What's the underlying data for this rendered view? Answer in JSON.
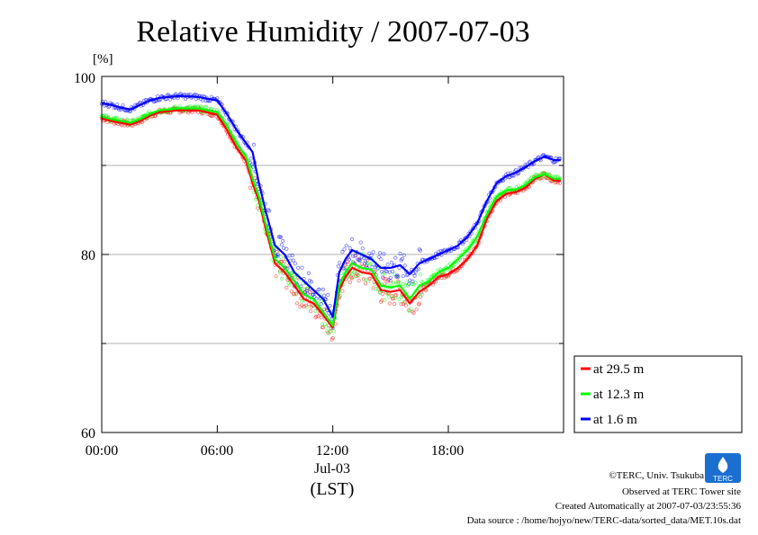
{
  "title": "Relative Humidity / 2007-07-03",
  "y_unit": "[%]",
  "x_date_label": "Jul-03",
  "x_axis_label": "(LST)",
  "legend": [
    "at 29.5 m",
    "at 12.3 m",
    "at 1.6 m"
  ],
  "footer": {
    "copyright": "©TERC, Univ. Tsukuba",
    "observed": "Observed at TERC Tower site",
    "created": "Created Automatically at 2007-07-03/23:55:36",
    "source": "Data source : /home/hojyo/new/TERC-data/sorted_data/MET.10s.dat"
  },
  "logo_text": "TERC",
  "chart_data": {
    "type": "line",
    "title": "Relative Humidity / 2007-07-03",
    "ylabel": "[%]",
    "xlabel": "(LST)",
    "ylim": [
      60,
      100
    ],
    "yticks": [
      "60",
      "80",
      "100"
    ],
    "xlim": [
      "00:00",
      "23:59"
    ],
    "xticks": [
      "00:00",
      "06:00",
      "12:00",
      "18:00"
    ],
    "grid": true,
    "legend_position": "right, below plot",
    "x": [
      "00:00",
      "00:30",
      "01:00",
      "01:30",
      "02:00",
      "02:30",
      "03:00",
      "04:00",
      "05:00",
      "06:00",
      "06:30",
      "07:00",
      "07:30",
      "07:50",
      "08:10",
      "08:30",
      "09:00",
      "09:30",
      "10:00",
      "10:30",
      "11:00",
      "11:30",
      "11:45",
      "12:00",
      "12:20",
      "12:40",
      "13:00",
      "13:30",
      "14:00",
      "14:30",
      "15:00",
      "15:30",
      "16:00",
      "16:30",
      "17:00",
      "17:30",
      "18:00",
      "18:30",
      "19:00",
      "19:30",
      "20:00",
      "20:30",
      "21:00",
      "21:30",
      "22:00",
      "22:30",
      "23:00",
      "23:30",
      "23:50"
    ],
    "series": [
      {
        "name": "at 29.5 m",
        "color": "#ff0000",
        "values": [
          95.3,
          95.0,
          94.8,
          94.6,
          95.0,
          95.6,
          96.0,
          96.2,
          96.2,
          95.7,
          94.0,
          92.0,
          90.5,
          88.0,
          86.0,
          83.0,
          79.0,
          78.0,
          76.5,
          75.0,
          74.5,
          73.2,
          72.5,
          71.8,
          76.0,
          77.5,
          78.5,
          78.0,
          77.8,
          76.0,
          75.8,
          76.0,
          74.5,
          75.8,
          76.5,
          77.5,
          77.8,
          78.5,
          79.5,
          81.0,
          84.0,
          86.0,
          86.8,
          87.0,
          87.5,
          88.5,
          89.0,
          88.3,
          88.3
        ]
      },
      {
        "name": "at 12.3 m",
        "color": "#00ff00",
        "values": [
          95.5,
          95.2,
          95.0,
          94.8,
          95.2,
          95.8,
          96.2,
          96.4,
          96.4,
          96.0,
          94.5,
          92.5,
          91.0,
          88.5,
          86.5,
          83.5,
          79.5,
          78.5,
          77.0,
          75.5,
          75.0,
          73.5,
          72.8,
          72.0,
          76.5,
          78.0,
          79.0,
          78.5,
          78.3,
          76.5,
          76.3,
          76.5,
          75.0,
          76.5,
          77.0,
          78.0,
          78.5,
          79.5,
          80.5,
          82.0,
          84.5,
          86.5,
          87.2,
          87.3,
          87.8,
          88.7,
          89.0,
          88.5,
          88.5
        ]
      },
      {
        "name": "at 1.6 m",
        "color": "#0000ff",
        "values": [
          97.0,
          96.8,
          96.5,
          96.3,
          96.8,
          97.3,
          97.6,
          97.8,
          97.7,
          97.3,
          95.8,
          94.0,
          92.5,
          91.5,
          88.0,
          85.0,
          81.0,
          80.0,
          78.0,
          77.0,
          76.0,
          75.0,
          74.0,
          73.0,
          78.0,
          79.5,
          80.5,
          80.0,
          79.5,
          78.5,
          78.5,
          78.8,
          77.8,
          79.0,
          79.5,
          80.0,
          80.5,
          81.0,
          82.0,
          83.5,
          86.0,
          88.0,
          88.8,
          89.2,
          89.8,
          90.5,
          91.0,
          90.6,
          90.6
        ]
      }
    ]
  }
}
